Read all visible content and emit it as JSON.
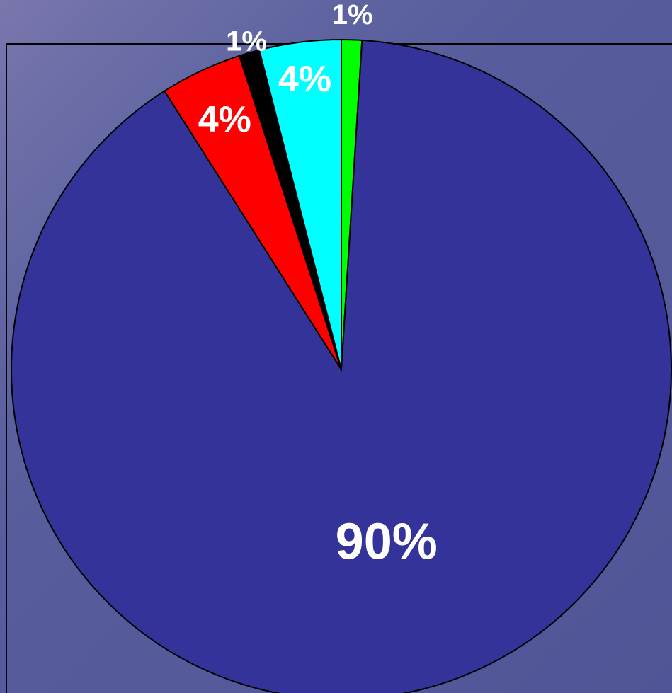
{
  "chart_data": {
    "type": "pie",
    "values": [
      1,
      90,
      4,
      1,
      4
    ],
    "value_labels": [
      "1%",
      "90%",
      "4%",
      "1%",
      "4%"
    ],
    "colors": [
      "#00ff00",
      "#333399",
      "#ff0000",
      "#000000",
      "#00ffff"
    ]
  }
}
